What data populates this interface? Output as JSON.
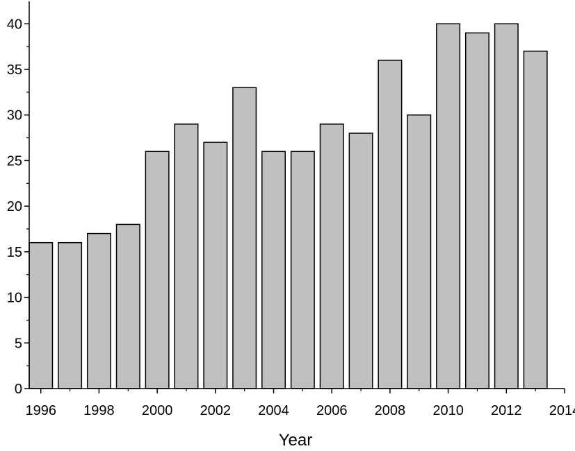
{
  "chart_data": {
    "type": "bar",
    "title": "",
    "xlabel": "Year",
    "ylabel": "",
    "x": [
      1996,
      1997,
      1998,
      1999,
      2000,
      2001,
      2002,
      2003,
      2004,
      2005,
      2006,
      2007,
      2008,
      2009,
      2010,
      2011,
      2012,
      2013
    ],
    "values": [
      16,
      16,
      17,
      18,
      26,
      29,
      27,
      33,
      26,
      26,
      29,
      28,
      36,
      30,
      40,
      39,
      40,
      37
    ],
    "xlim": [
      1995.6,
      2014
    ],
    "ylim": [
      0,
      42
    ],
    "xticks": [
      "1996",
      "1998",
      "2000",
      "2002",
      "2004",
      "2006",
      "2008",
      "2010",
      "2012",
      "2014"
    ],
    "yticks": [
      "0",
      "5",
      "10",
      "15",
      "20",
      "25",
      "30",
      "35",
      "40"
    ],
    "grid": false,
    "legend": "none",
    "colors": {
      "bar_fill": "#c0c0c0",
      "bar_stroke": "#000000",
      "axis": "#000000",
      "background": "#ffffff"
    }
  }
}
